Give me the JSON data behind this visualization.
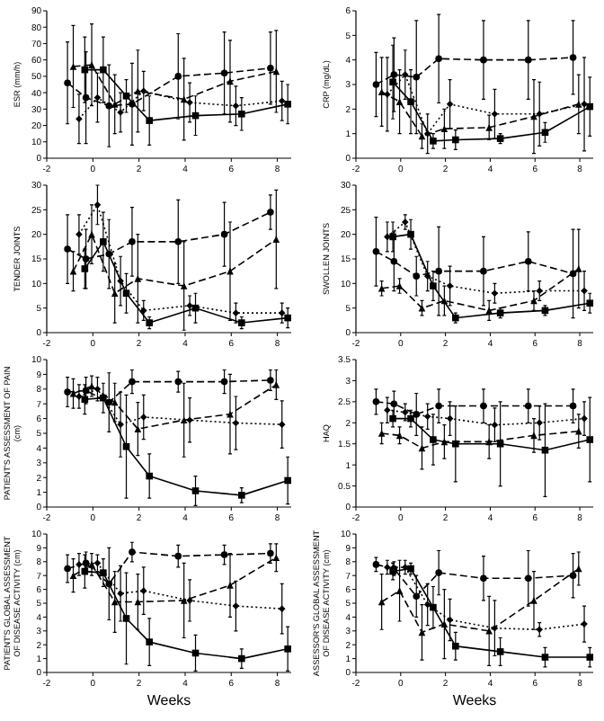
{
  "chart_data": [
    {
      "type": "line",
      "ylabel": "ESR (mm/h)",
      "xlim": [
        -2,
        8.6
      ],
      "xticks": [
        -2,
        0,
        2,
        4,
        6,
        8
      ],
      "ylim": [
        0,
        90
      ],
      "yticks": [
        0,
        10,
        20,
        30,
        40,
        50,
        60,
        70,
        80,
        90
      ],
      "series": [
        {
          "color": "#000000",
          "marker": "square",
          "line_style": "solid",
          "x": [
            -0.35,
            0.45,
            1.45,
            2.45,
            4.45,
            6.45,
            8.45
          ],
          "values": [
            54,
            54,
            38,
            23,
            26,
            27,
            33
          ],
          "errors": [
            20,
            20,
            10,
            15,
            12,
            10,
            12
          ]
        },
        {
          "color": "#000000",
          "marker": "triangle",
          "line_style": "dashed",
          "x": [
            -0.85,
            -0.05,
            0.95,
            1.95,
            3.95,
            5.95,
            7.95
          ],
          "values": [
            56,
            57,
            33,
            41,
            36,
            47,
            53
          ],
          "errors": [
            25,
            25,
            18,
            25,
            25,
            25,
            25
          ]
        },
        {
          "color": "#000000",
          "marker": "diamond",
          "line_style": "dotted",
          "x": [
            -0.6,
            0.2,
            1.2,
            2.2,
            4.2,
            6.2,
            8.2
          ],
          "values": [
            24,
            37,
            28,
            41,
            34,
            32,
            35
          ],
          "errors": [
            15,
            15,
            12,
            12,
            12,
            12,
            12
          ]
        },
        {
          "color": "#000000",
          "marker": "circle",
          "line_style": "dashed",
          "x": [
            -1.1,
            -0.3,
            0.7,
            1.7,
            3.7,
            5.7,
            7.7
          ],
          "values": [
            46,
            37,
            32,
            33,
            50,
            52,
            55
          ],
          "errors": [
            25,
            28,
            25,
            25,
            26,
            25,
            22
          ]
        }
      ]
    },
    {
      "type": "line",
      "ylabel": "CRP (mg/dL)",
      "xlim": [
        -2,
        8.6
      ],
      "xticks": [
        -2,
        0,
        2,
        4,
        6,
        8
      ],
      "ylim": [
        0,
        6
      ],
      "yticks": [
        0,
        1,
        2,
        3,
        4,
        5,
        6
      ],
      "series": [
        {
          "color": "#000000",
          "marker": "square",
          "line_style": "solid",
          "x": [
            -0.35,
            0.45,
            1.45,
            2.45,
            4.45,
            6.45,
            8.45
          ],
          "values": [
            3.1,
            2.3,
            0.7,
            0.75,
            0.8,
            1.05,
            2.1
          ],
          "errors": [
            1.5,
            1.3,
            0.3,
            0.4,
            0.2,
            0.4,
            1.2
          ]
        },
        {
          "color": "#000000",
          "marker": "triangle",
          "line_style": "dashed",
          "x": [
            -0.85,
            -0.05,
            0.95,
            1.95,
            3.95,
            5.95,
            7.95
          ],
          "values": [
            2.7,
            2.3,
            0.9,
            1.2,
            1.25,
            1.7,
            2.2
          ],
          "errors": [
            1.4,
            1.3,
            0.5,
            0.8,
            0.5,
            1.5,
            1.2
          ]
        },
        {
          "color": "#000000",
          "marker": "diamond",
          "line_style": "dotted",
          "x": [
            -0.6,
            0.2,
            1.2,
            2.2,
            4.2,
            6.2,
            8.2
          ],
          "values": [
            2.6,
            3.4,
            1.0,
            2.2,
            1.8,
            1.8,
            2.2
          ],
          "errors": [
            1.5,
            1.0,
            0.8,
            1.0,
            1.0,
            1.3,
            1.9
          ]
        },
        {
          "color": "#000000",
          "marker": "circle",
          "line_style": "dashed",
          "x": [
            -1.1,
            -0.3,
            0.7,
            1.7,
            3.7,
            5.7,
            7.7
          ],
          "values": [
            3.0,
            3.4,
            3.3,
            4.05,
            4.0,
            4.0,
            4.1
          ],
          "errors": [
            1.3,
            1.5,
            2.3,
            1.8,
            1.6,
            1.6,
            1.5
          ]
        }
      ]
    },
    {
      "type": "line",
      "ylabel": "TENDER JOINTS",
      "xlim": [
        -2,
        8.6
      ],
      "xticks": [
        -2,
        0,
        2,
        4,
        6,
        8
      ],
      "ylim": [
        0,
        30
      ],
      "yticks": [
        0,
        5,
        10,
        15,
        20,
        25,
        30
      ],
      "series": [
        {
          "color": "#000000",
          "marker": "square",
          "line_style": "solid",
          "x": [
            -0.35,
            0.45,
            1.45,
            2.45,
            4.45,
            6.45,
            8.45
          ],
          "values": [
            13,
            18.5,
            8,
            2,
            5,
            2,
            3
          ],
          "errors": [
            4,
            6,
            4,
            1.2,
            3,
            1.2,
            2
          ]
        },
        {
          "color": "#000000",
          "marker": "triangle",
          "line_style": "dashed",
          "x": [
            -0.85,
            -0.05,
            0.95,
            1.95,
            3.95,
            5.95,
            7.95
          ],
          "values": [
            12.5,
            20,
            8,
            11,
            9.5,
            12.5,
            19
          ],
          "errors": [
            4,
            6,
            6,
            9,
            9,
            10,
            10
          ]
        },
        {
          "color": "#000000",
          "marker": "diamond",
          "line_style": "dotted",
          "x": [
            -0.6,
            0.2,
            1.2,
            2.2,
            4.2,
            6.2,
            8.2
          ],
          "values": [
            20,
            26,
            10.5,
            4.5,
            5.5,
            4,
            4
          ],
          "errors": [
            4,
            4,
            5,
            2,
            2,
            2,
            2
          ]
        },
        {
          "color": "#000000",
          "marker": "circle",
          "line_style": "dashed",
          "x": [
            -1.1,
            -0.3,
            0.7,
            1.7,
            3.7,
            5.7,
            7.7
          ],
          "values": [
            17,
            15,
            16,
            18.5,
            18.5,
            20,
            24.5
          ],
          "errors": [
            7,
            6,
            7,
            7,
            8.5,
            6.5,
            3.5
          ]
        }
      ]
    },
    {
      "type": "line",
      "ylabel": "SWOLLEN JOINTS",
      "xlim": [
        -2,
        8.6
      ],
      "xticks": [
        -2,
        0,
        2,
        4,
        6,
        8
      ],
      "ylim": [
        0,
        30
      ],
      "yticks": [
        0,
        5,
        10,
        15,
        20,
        25,
        30
      ],
      "series": [
        {
          "color": "#000000",
          "marker": "square",
          "line_style": "solid",
          "x": [
            -0.35,
            0.45,
            1.45,
            2.45,
            4.45,
            6.45,
            8.45
          ],
          "values": [
            19.5,
            20,
            9.5,
            3,
            4,
            4.5,
            6
          ],
          "errors": [
            3,
            3,
            3,
            1,
            1,
            1,
            2
          ]
        },
        {
          "color": "#000000",
          "marker": "triangle",
          "line_style": "dashed",
          "x": [
            -0.85,
            -0.05,
            0.95,
            1.95,
            3.95,
            5.95,
            7.95
          ],
          "values": [
            9,
            9.5,
            5,
            6.5,
            4.5,
            6.5,
            13
          ],
          "errors": [
            1.5,
            1.5,
            1.5,
            3,
            2,
            2,
            8
          ]
        },
        {
          "color": "#000000",
          "marker": "diamond",
          "line_style": "dotted",
          "x": [
            -0.6,
            0.2,
            1.2,
            2.2,
            4.2,
            6.2,
            8.2
          ],
          "values": [
            19.5,
            22.5,
            11.5,
            9.5,
            8,
            8.5,
            8.5
          ],
          "errors": [
            3,
            1.5,
            3,
            4,
            2,
            2,
            4
          ]
        },
        {
          "color": "#000000",
          "marker": "circle",
          "line_style": "dashed",
          "x": [
            -1.1,
            -0.3,
            0.7,
            1.7,
            3.7,
            5.7,
            7.7
          ],
          "values": [
            16.5,
            14.5,
            11.5,
            12.5,
            12.5,
            14.5,
            12
          ],
          "errors": [
            7,
            6,
            4,
            9,
            7,
            6,
            9
          ]
        }
      ]
    },
    {
      "type": "line",
      "ylabel": "PATIENT'S ASSESSMENT OF PAIN (cm)",
      "xlim": [
        -2,
        8.6
      ],
      "xticks": [
        -2,
        0,
        2,
        4,
        6,
        8
      ],
      "ylim": [
        0,
        10
      ],
      "yticks": [
        0,
        1,
        2,
        3,
        4,
        5,
        6,
        7,
        8,
        9,
        10
      ],
      "series": [
        {
          "color": "#000000",
          "marker": "square",
          "line_style": "solid",
          "x": [
            -0.35,
            0.45,
            1.45,
            2.45,
            4.45,
            6.45,
            8.45
          ],
          "values": [
            7.3,
            7.4,
            4.1,
            2.1,
            1.1,
            0.8,
            1.8
          ],
          "errors": [
            1,
            1,
            3.5,
            1.5,
            1,
            0.5,
            1.6
          ]
        },
        {
          "color": "#000000",
          "marker": "triangle",
          "line_style": "dashed",
          "x": [
            -0.85,
            -0.05,
            0.95,
            1.95,
            3.95,
            5.95,
            7.95
          ],
          "values": [
            7.7,
            8.2,
            7.1,
            5.3,
            5.9,
            6.3,
            8.3
          ],
          "errors": [
            1,
            0.7,
            1.3,
            1.8,
            2.5,
            2.7,
            1
          ]
        },
        {
          "color": "#000000",
          "marker": "diamond",
          "line_style": "dotted",
          "x": [
            -0.6,
            0.2,
            1.2,
            2.2,
            4.2,
            6.2,
            8.2
          ],
          "values": [
            7.5,
            8.0,
            5.6,
            6.1,
            5.9,
            5.7,
            5.6
          ],
          "errors": [
            0.8,
            0.8,
            2.2,
            1.5,
            1.5,
            1.8,
            1.6
          ]
        },
        {
          "color": "#000000",
          "marker": "circle",
          "line_style": "dashed",
          "x": [
            -1.1,
            -0.3,
            0.7,
            1.7,
            3.7,
            5.7,
            7.7
          ],
          "values": [
            7.8,
            7.9,
            7.1,
            8.5,
            8.5,
            8.5,
            8.6
          ],
          "errors": [
            1,
            0.9,
            2,
            0.8,
            0.7,
            0.8,
            0.7
          ]
        }
      ]
    },
    {
      "type": "line",
      "ylabel": "HAQ",
      "xlim": [
        -2,
        8.6
      ],
      "xticks": [
        -2,
        0,
        2,
        4,
        6,
        8
      ],
      "ylim": [
        0,
        3.5
      ],
      "yticks": [
        0,
        0.5,
        1,
        1.5,
        2,
        2.5,
        3,
        3.5
      ],
      "series": [
        {
          "color": "#000000",
          "marker": "square",
          "line_style": "solid",
          "x": [
            -0.35,
            0.45,
            1.45,
            2.45,
            4.45,
            6.45,
            8.45
          ],
          "values": [
            2.1,
            2.1,
            1.6,
            1.5,
            1.5,
            1.35,
            1.6
          ],
          "errors": [
            0.2,
            0.2,
            0.6,
            0.9,
            1,
            1.1,
            1.0
          ]
        },
        {
          "color": "#000000",
          "marker": "triangle",
          "line_style": "dashed",
          "x": [
            -0.85,
            -0.05,
            0.95,
            1.95,
            3.95,
            5.95,
            7.95
          ],
          "values": [
            1.75,
            1.7,
            1.4,
            1.55,
            1.55,
            1.7,
            1.8
          ],
          "errors": [
            0.25,
            0.2,
            0.5,
            0.4,
            0.4,
            0.4,
            0.4
          ]
        },
        {
          "color": "#000000",
          "marker": "diamond",
          "line_style": "dotted",
          "x": [
            -0.6,
            0.2,
            1.2,
            2.2,
            4.2,
            6.2,
            8.2
          ],
          "values": [
            2.3,
            2.25,
            2.15,
            2.1,
            1.95,
            2.0,
            2.1
          ],
          "errors": [
            0.3,
            0.2,
            0.3,
            0.4,
            0.4,
            0.4,
            0.4
          ]
        },
        {
          "color": "#000000",
          "marker": "circle",
          "line_style": "dashed",
          "x": [
            -1.1,
            -0.3,
            0.7,
            1.7,
            3.7,
            5.7,
            7.7
          ],
          "values": [
            2.5,
            2.45,
            2.2,
            2.4,
            2.4,
            2.4,
            2.4
          ],
          "errors": [
            0.3,
            0.3,
            0.5,
            0.4,
            0.4,
            0.4,
            0.4
          ]
        }
      ]
    },
    {
      "type": "line",
      "ylabel": "PATIENT'S GLOBAL ASSESSMENT OF DISEASE ACTIVITY (cm)",
      "xlabel": "Weeks",
      "xlim": [
        -2,
        8.6
      ],
      "xticks": [
        -2,
        0,
        2,
        4,
        6,
        8
      ],
      "ylim": [
        0,
        10
      ],
      "yticks": [
        0,
        1,
        2,
        3,
        4,
        5,
        6,
        7,
        8,
        9,
        10
      ],
      "series": [
        {
          "color": "#000000",
          "marker": "square",
          "line_style": "solid",
          "x": [
            -0.35,
            0.45,
            1.45,
            2.45,
            4.45,
            6.45,
            8.45
          ],
          "values": [
            7.3,
            7.2,
            3.9,
            2.2,
            1.4,
            1.0,
            1.7
          ],
          "errors": [
            1.2,
            1,
            3.3,
            1.7,
            1.3,
            0.7,
            1.6
          ]
        },
        {
          "color": "#000000",
          "marker": "triangle",
          "line_style": "dashed",
          "x": [
            -0.85,
            -0.05,
            0.95,
            1.95,
            3.95,
            5.95,
            7.95
          ],
          "values": [
            7.0,
            7.8,
            5.1,
            5.1,
            5.2,
            6.3,
            8.3
          ],
          "errors": [
            1.2,
            0.8,
            2.2,
            2,
            2.7,
            2.3,
            1
          ]
        },
        {
          "color": "#000000",
          "marker": "diamond",
          "line_style": "dotted",
          "x": [
            -0.6,
            0.2,
            1.2,
            2.2,
            4.2,
            6.2,
            8.2
          ],
          "values": [
            7.8,
            7.9,
            5.7,
            5.9,
            5.2,
            4.8,
            4.6
          ],
          "errors": [
            0.8,
            0.6,
            2,
            1.7,
            1.5,
            1.8,
            1.8
          ]
        },
        {
          "color": "#000000",
          "marker": "circle",
          "line_style": "dashed",
          "x": [
            -1.1,
            -0.3,
            0.7,
            1.7,
            3.7,
            5.7,
            7.7
          ],
          "values": [
            7.5,
            7.9,
            6.4,
            8.7,
            8.4,
            8.5,
            8.6
          ],
          "errors": [
            1,
            0.8,
            2.6,
            0.7,
            0.8,
            0.7,
            0.7
          ]
        }
      ]
    },
    {
      "type": "line",
      "ylabel": "ASSESSOR'S GLOBAL ASSESSMENT OF DISEASE ACTIVITY (cm)",
      "xlabel": "Weeks",
      "xlim": [
        -2,
        8.6
      ],
      "xticks": [
        -2,
        0,
        2,
        4,
        6,
        8
      ],
      "ylim": [
        0,
        10
      ],
      "yticks": [
        0,
        1,
        2,
        3,
        4,
        5,
        6,
        7,
        8,
        9,
        10
      ],
      "series": [
        {
          "color": "#000000",
          "marker": "square",
          "line_style": "solid",
          "x": [
            -0.35,
            0.45,
            1.45,
            2.45,
            4.45,
            6.45,
            8.45
          ],
          "values": [
            7.3,
            7.5,
            4.7,
            1.9,
            1.5,
            1.1,
            1.1
          ],
          "errors": [
            0.6,
            0.4,
            1.5,
            1,
            1,
            0.7,
            0.7
          ]
        },
        {
          "color": "#000000",
          "marker": "triangle",
          "line_style": "dashed",
          "x": [
            -0.85,
            -0.05,
            0.95,
            1.95,
            3.95,
            5.95,
            7.95
          ],
          "values": [
            5.1,
            5.9,
            2.9,
            3.5,
            3.0,
            5.2,
            7.5
          ],
          "errors": [
            2,
            2.2,
            2,
            2.5,
            2.5,
            2.1,
            1.2
          ]
        },
        {
          "color": "#000000",
          "marker": "diamond",
          "line_style": "dotted",
          "x": [
            -0.6,
            0.2,
            1.2,
            2.2,
            4.2,
            6.2,
            8.2
          ],
          "values": [
            7.6,
            7.6,
            4.9,
            3.8,
            3.2,
            3.1,
            3.5
          ],
          "errors": [
            0.5,
            0.5,
            1.5,
            1.5,
            2,
            0.5,
            1.3
          ]
        },
        {
          "color": "#000000",
          "marker": "circle",
          "line_style": "dashed",
          "x": [
            -1.1,
            -0.3,
            0.7,
            1.7,
            3.7,
            5.7,
            7.7
          ],
          "values": [
            7.8,
            7.5,
            5.5,
            7.2,
            6.8,
            6.8,
            7.0
          ],
          "errors": [
            0.5,
            0.5,
            1.5,
            1.6,
            1.6,
            2,
            1.6
          ]
        }
      ]
    }
  ]
}
